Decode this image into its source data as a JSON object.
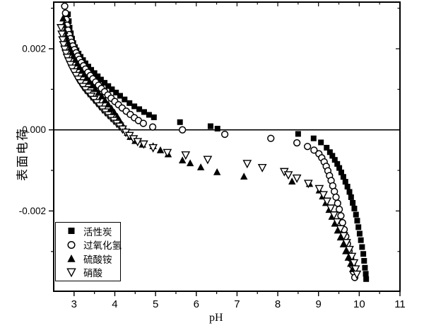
{
  "figure": {
    "background": "#ffffff",
    "foreground": "#000000"
  },
  "axes": {
    "x": {
      "title": "pH",
      "min": 2.5,
      "max": 11,
      "major_ticks": [
        3,
        4,
        5,
        6,
        7,
        8,
        9,
        10,
        11
      ],
      "minor_ticks": [
        3.5,
        4.5,
        5.5,
        6.5,
        7.5,
        8.5,
        9.5,
        10.5
      ]
    },
    "y": {
      "title": "表面电荷",
      "min": -0.00398,
      "max": 0.00315,
      "major_ticks": [
        {
          "value": 0.002,
          "label": "0.002"
        },
        {
          "value": 0,
          "label": "0.000"
        },
        {
          "value": -0.002,
          "label": "-0.002"
        }
      ],
      "minor_ticks": [
        0.003,
        0.001,
        -0.001,
        -0.003
      ]
    },
    "zero_line_y": 0
  },
  "legend": {
    "position": "lower-left"
  },
  "chart_data": {
    "type": "scatter",
    "title": "",
    "xlabel": "pH",
    "ylabel": "表面电荷",
    "xlim": [
      2.5,
      11
    ],
    "ylim": [
      -0.00398,
      0.00315
    ],
    "grid": false,
    "legend_position": "lower-left",
    "series": [
      {
        "name": "活性炭",
        "id": "activated-carbon",
        "marker": "filled-square",
        "points": [
          [
            2.85,
            0.00285
          ],
          [
            2.87,
            0.00268
          ],
          [
            2.89,
            0.00252
          ],
          [
            2.92,
            0.00238
          ],
          [
            2.95,
            0.00225
          ],
          [
            2.98,
            0.00214
          ],
          [
            3.02,
            0.00204
          ],
          [
            3.06,
            0.00196
          ],
          [
            3.11,
            0.00188
          ],
          [
            3.16,
            0.0018
          ],
          [
            3.22,
            0.00172
          ],
          [
            3.28,
            0.00164
          ],
          [
            3.35,
            0.00156
          ],
          [
            3.42,
            0.00148
          ],
          [
            3.5,
            0.0014
          ],
          [
            3.58,
            0.00132
          ],
          [
            3.66,
            0.00124
          ],
          [
            3.75,
            0.00116
          ],
          [
            3.84,
            0.00108
          ],
          [
            3.93,
            0.001
          ],
          [
            4.03,
            0.00092
          ],
          [
            4.13,
            0.00084
          ],
          [
            4.24,
            0.00075
          ],
          [
            4.36,
            0.00066
          ],
          [
            4.48,
            0.00058
          ],
          [
            4.6,
            0.00051
          ],
          [
            4.72,
            0.00044
          ],
          [
            4.84,
            0.00037
          ],
          [
            4.96,
            0.00031
          ],
          [
            5.6,
            0.00019
          ],
          [
            6.35,
            9e-05
          ],
          [
            6.52,
            3e-05
          ],
          [
            8.5,
            -0.0001
          ],
          [
            8.88,
            -0.00021
          ],
          [
            9.06,
            -0.00031
          ],
          [
            9.2,
            -0.00044
          ],
          [
            9.28,
            -0.00055
          ],
          [
            9.34,
            -0.00064
          ],
          [
            9.4,
            -0.00074
          ],
          [
            9.46,
            -0.00084
          ],
          [
            9.51,
            -0.00094
          ],
          [
            9.56,
            -0.00105
          ],
          [
            9.61,
            -0.00116
          ],
          [
            9.66,
            -0.00128
          ],
          [
            9.71,
            -0.0014
          ],
          [
            9.76,
            -0.00153
          ],
          [
            9.8,
            -0.00166
          ],
          [
            9.84,
            -0.0018
          ],
          [
            9.88,
            -0.00194
          ],
          [
            9.92,
            -0.00209
          ],
          [
            9.95,
            -0.00224
          ],
          [
            9.98,
            -0.0024
          ],
          [
            10.01,
            -0.00256
          ],
          [
            10.04,
            -0.00272
          ],
          [
            10.07,
            -0.00289
          ],
          [
            10.1,
            -0.00306
          ],
          [
            10.12,
            -0.00323
          ],
          [
            10.14,
            -0.0034
          ],
          [
            10.16,
            -0.00355
          ],
          [
            10.17,
            -0.00368
          ]
        ]
      },
      {
        "name": "过氧化氢",
        "id": "hydrogen-peroxide",
        "marker": "open-circle",
        "points": [
          [
            2.77,
            0.00305
          ],
          [
            2.79,
            0.00288
          ],
          [
            2.81,
            0.00272
          ],
          [
            2.83,
            0.00258
          ],
          [
            2.85,
            0.00246
          ],
          [
            2.88,
            0.00235
          ],
          [
            2.91,
            0.00225
          ],
          [
            2.94,
            0.00216
          ],
          [
            2.97,
            0.00207
          ],
          [
            3.01,
            0.00198
          ],
          [
            3.05,
            0.0019
          ],
          [
            3.09,
            0.00182
          ],
          [
            3.13,
            0.00174
          ],
          [
            3.18,
            0.00166
          ],
          [
            3.23,
            0.00158
          ],
          [
            3.28,
            0.0015
          ],
          [
            3.34,
            0.00142
          ],
          [
            3.4,
            0.00134
          ],
          [
            3.46,
            0.00126
          ],
          [
            3.53,
            0.00118
          ],
          [
            3.6,
            0.0011
          ],
          [
            3.67,
            0.00102
          ],
          [
            3.75,
            0.00094
          ],
          [
            3.83,
            0.00086
          ],
          [
            3.91,
            0.00078
          ],
          [
            4.0,
            0.0007
          ],
          [
            4.09,
            0.00062
          ],
          [
            4.18,
            0.00054
          ],
          [
            4.28,
            0.00046
          ],
          [
            4.38,
            0.00038
          ],
          [
            4.48,
            0.0003
          ],
          [
            4.58,
            0.00023
          ],
          [
            4.7,
            0.00016
          ],
          [
            4.93,
            7e-05
          ],
          [
            5.66,
            0.0
          ],
          [
            6.7,
            -0.00011
          ],
          [
            7.83,
            -0.00021
          ],
          [
            8.47,
            -0.00032
          ],
          [
            8.73,
            -0.00041
          ],
          [
            8.89,
            -0.0005
          ],
          [
            9.01,
            -0.00059
          ],
          [
            9.08,
            -0.00069
          ],
          [
            9.14,
            -0.00079
          ],
          [
            9.19,
            -0.0009
          ],
          [
            9.23,
            -0.00101
          ],
          [
            9.27,
            -0.00113
          ],
          [
            9.31,
            -0.00125
          ],
          [
            9.35,
            -0.00138
          ],
          [
            9.39,
            -0.00152
          ],
          [
            9.43,
            -0.00166
          ],
          [
            9.47,
            -0.00181
          ],
          [
            9.51,
            -0.00196
          ],
          [
            9.55,
            -0.00212
          ],
          [
            9.59,
            -0.00229
          ],
          [
            9.63,
            -0.00246
          ],
          [
            9.67,
            -0.00263
          ],
          [
            9.71,
            -0.00281
          ],
          [
            9.75,
            -0.00299
          ],
          [
            9.79,
            -0.00317
          ],
          [
            9.83,
            -0.00334
          ],
          [
            9.86,
            -0.0035
          ],
          [
            9.89,
            -0.00364
          ]
        ]
      },
      {
        "name": "硫酸铵",
        "id": "ammonium-sulfate",
        "marker": "filled-triangle-up",
        "points": [
          [
            2.73,
            0.00275
          ],
          [
            2.75,
            0.00259
          ],
          [
            2.77,
            0.00244
          ],
          [
            2.8,
            0.00231
          ],
          [
            2.83,
            0.0022
          ],
          [
            2.86,
            0.0021
          ],
          [
            2.9,
            0.002
          ],
          [
            2.94,
            0.00191
          ],
          [
            2.98,
            0.00182
          ],
          [
            3.03,
            0.00173
          ],
          [
            3.08,
            0.00164
          ],
          [
            3.13,
            0.00155
          ],
          [
            3.19,
            0.00146
          ],
          [
            3.25,
            0.00137
          ],
          [
            3.31,
            0.00128
          ],
          [
            3.38,
            0.00119
          ],
          [
            3.45,
            0.0011
          ],
          [
            3.52,
            0.00101
          ],
          [
            3.6,
            0.00092
          ],
          [
            3.68,
            0.00083
          ],
          [
            3.76,
            0.00073
          ],
          [
            3.84,
            0.00063
          ],
          [
            3.92,
            0.00053
          ],
          [
            3.99,
            0.00043
          ],
          [
            4.06,
            0.00033
          ],
          [
            4.12,
            0.00023
          ],
          [
            4.18,
            0.00013
          ],
          [
            4.24,
            3e-05
          ],
          [
            4.31,
            -7e-05
          ],
          [
            4.38,
            -0.00017
          ],
          [
            4.5,
            -0.00027
          ],
          [
            4.68,
            -0.00036
          ],
          [
            4.94,
            -0.0004
          ],
          [
            5.12,
            -0.0005
          ],
          [
            5.31,
            -0.0006
          ],
          [
            5.66,
            -0.00075
          ],
          [
            5.85,
            -0.00082
          ],
          [
            6.11,
            -0.00092
          ],
          [
            6.51,
            -0.00104
          ],
          [
            7.17,
            -0.00115
          ],
          [
            8.35,
            -0.00127
          ],
          [
            8.78,
            -0.00133
          ],
          [
            9.02,
            -0.00149
          ],
          [
            9.1,
            -0.00164
          ],
          [
            9.18,
            -0.0018
          ],
          [
            9.26,
            -0.00197
          ],
          [
            9.33,
            -0.00214
          ],
          [
            9.4,
            -0.00231
          ],
          [
            9.47,
            -0.00248
          ],
          [
            9.54,
            -0.00265
          ],
          [
            9.61,
            -0.00282
          ],
          [
            9.67,
            -0.00299
          ],
          [
            9.73,
            -0.00315
          ],
          [
            9.79,
            -0.0033
          ],
          [
            9.84,
            -0.00343
          ]
        ]
      },
      {
        "name": "硝酸",
        "id": "nitric-acid",
        "marker": "open-triangle-down",
        "points": [
          [
            2.68,
            0.00252
          ],
          [
            2.7,
            0.00236
          ],
          [
            2.72,
            0.00222
          ],
          [
            2.74,
            0.0021
          ],
          [
            2.77,
            0.00199
          ],
          [
            2.8,
            0.00189
          ],
          [
            2.83,
            0.00179
          ],
          [
            2.87,
            0.0017
          ],
          [
            2.91,
            0.00161
          ],
          [
            2.95,
            0.00152
          ],
          [
            3.0,
            0.00143
          ],
          [
            3.05,
            0.00134
          ],
          [
            3.1,
            0.00125
          ],
          [
            3.16,
            0.00116
          ],
          [
            3.22,
            0.00107
          ],
          [
            3.28,
            0.00099
          ],
          [
            3.35,
            0.00091
          ],
          [
            3.42,
            0.00083
          ],
          [
            3.49,
            0.00075
          ],
          [
            3.56,
            0.00067
          ],
          [
            3.63,
            0.00059
          ],
          [
            3.7,
            0.00051
          ],
          [
            3.77,
            0.00044
          ],
          [
            3.84,
            0.00037
          ],
          [
            3.91,
            0.0003
          ],
          [
            3.98,
            0.00023
          ],
          [
            4.05,
            0.00016
          ],
          [
            4.12,
            9e-05
          ],
          [
            4.19,
            2e-05
          ],
          [
            4.27,
            -6e-05
          ],
          [
            4.36,
            -0.00014
          ],
          [
            4.46,
            -0.00022
          ],
          [
            4.56,
            -0.00029
          ],
          [
            4.71,
            -0.00035
          ],
          [
            4.94,
            -0.00044
          ],
          [
            5.29,
            -0.00056
          ],
          [
            5.74,
            -0.00062
          ],
          [
            6.28,
            -0.00073
          ],
          [
            7.25,
            -0.00083
          ],
          [
            7.62,
            -0.00093
          ],
          [
            8.16,
            -0.00103
          ],
          [
            8.26,
            -0.00111
          ],
          [
            8.47,
            -0.00119
          ],
          [
            8.75,
            -0.00132
          ],
          [
            9.02,
            -0.00145
          ],
          [
            9.12,
            -0.0016
          ],
          [
            9.21,
            -0.00176
          ],
          [
            9.3,
            -0.00193
          ],
          [
            9.38,
            -0.0021
          ],
          [
            9.46,
            -0.00227
          ],
          [
            9.54,
            -0.00244
          ],
          [
            9.62,
            -0.00261
          ],
          [
            9.69,
            -0.00278
          ],
          [
            9.76,
            -0.00295
          ],
          [
            9.82,
            -0.00312
          ],
          [
            9.87,
            -0.00328
          ],
          [
            9.91,
            -0.00343
          ],
          [
            9.94,
            -0.00356
          ]
        ]
      }
    ]
  }
}
